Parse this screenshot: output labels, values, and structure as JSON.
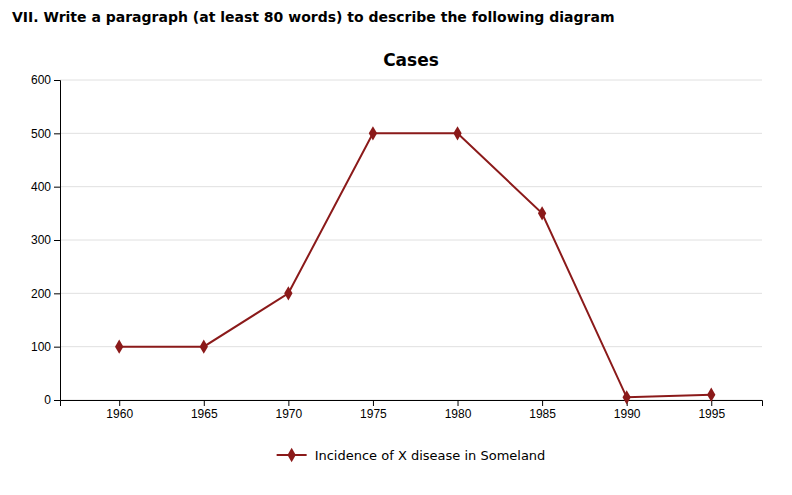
{
  "chart_data": {
    "type": "line",
    "title": "Cases",
    "subtitle": "VII. Write a paragraph (at least 80 words) to describe the following diagram",
    "x": [
      1960,
      1965,
      1970,
      1975,
      1980,
      1985,
      1990,
      1995
    ],
    "series": [
      {
        "name": "Incidence of X disease in Someland",
        "color": "#8B1A1A",
        "marker": "diamond",
        "values": [
          100,
          100,
          200,
          500,
          500,
          350,
          5,
          10
        ]
      }
    ],
    "xlim": [
      1956.5,
      1998
    ],
    "xticks": [
      1960,
      1965,
      1970,
      1975,
      1980,
      1985,
      1990,
      1995
    ],
    "ylim": [
      0,
      600
    ],
    "yticks": [
      0,
      100,
      200,
      300,
      400,
      500,
      600
    ],
    "grid": true,
    "legend": "bottom"
  }
}
